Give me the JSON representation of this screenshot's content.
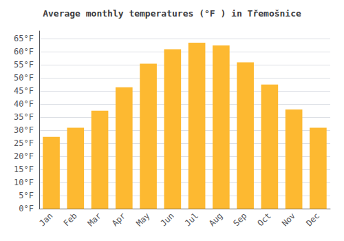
{
  "chart_data": {
    "type": "bar",
    "title": "Average monthly temperatures (°F ) in Třemošnice",
    "categories": [
      "Jan",
      "Feb",
      "Mar",
      "Apr",
      "May",
      "Jun",
      "Jul",
      "Aug",
      "Sep",
      "Oct",
      "Nov",
      "Dec"
    ],
    "values": [
      27.5,
      31.0,
      37.5,
      46.5,
      55.5,
      61.0,
      63.5,
      62.5,
      56.0,
      47.5,
      38.0,
      31.0
    ],
    "color": "#FDB931",
    "ylim": [
      0,
      68
    ],
    "yticks": [
      {
        "value": 0,
        "label": "0°F"
      },
      {
        "value": 5,
        "label": "5°F"
      },
      {
        "value": 10,
        "label": "10°F"
      },
      {
        "value": 15,
        "label": "15°F"
      },
      {
        "value": 20,
        "label": "20°F"
      },
      {
        "value": 25,
        "label": "25°F"
      },
      {
        "value": 30,
        "label": "30°F"
      },
      {
        "value": 35,
        "label": "35°F"
      },
      {
        "value": 40,
        "label": "40°F"
      },
      {
        "value": 45,
        "label": "45°F"
      },
      {
        "value": 50,
        "label": "50°F"
      },
      {
        "value": 55,
        "label": "55°F"
      },
      {
        "value": 60,
        "label": "60°F"
      },
      {
        "value": 65,
        "label": "65°F"
      }
    ],
    "grid": true
  }
}
